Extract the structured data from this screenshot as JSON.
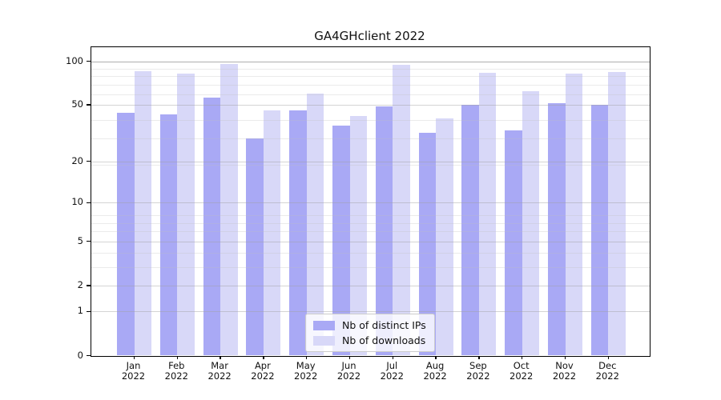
{
  "chart_data": {
    "type": "bar",
    "title": "GA4GHclient 2022",
    "categories": [
      "Jan 2022",
      "Feb 2022",
      "Mar 2022",
      "Apr 2022",
      "May 2022",
      "Jun 2022",
      "Jul 2022",
      "Aug 2022",
      "Sep 2022",
      "Oct 2022",
      "Nov 2022",
      "Dec 2022"
    ],
    "series": [
      {
        "name": "Nb of distinct IPs",
        "color": "#a9a9f5",
        "values": [
          44,
          43,
          56,
          29,
          46,
          36,
          49,
          32,
          50,
          33,
          51,
          50
        ]
      },
      {
        "name": "Nb of downloads",
        "color": "#d8d8f8",
        "values": [
          85,
          82,
          96,
          46,
          60,
          42,
          94,
          40,
          83,
          62,
          82,
          84
        ]
      }
    ],
    "yscale": "log(value+1)",
    "y_ticks": [
      0,
      1,
      2,
      5,
      10,
      20,
      50,
      100
    ],
    "ylim": [
      0,
      125
    ],
    "xlabel": "",
    "ylabel": "",
    "grid": true,
    "legend_position": "lower center"
  },
  "colors": {
    "axis": "#000000",
    "major_grid": "#d7d7d7",
    "minor_grid": "#ececec",
    "background": "#ffffff"
  }
}
